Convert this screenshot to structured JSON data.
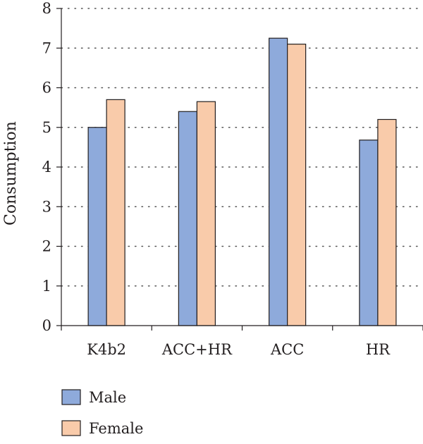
{
  "chart_data": {
    "type": "bar",
    "title": "",
    "xlabel": "",
    "ylabel": "Consumption",
    "ylim": [
      0,
      8
    ],
    "yticks": [
      0,
      1,
      2,
      3,
      4,
      5,
      6,
      7,
      8
    ],
    "grid": "horizontal-dotted",
    "legend_position": "bottom-left",
    "categories": [
      "K4b2",
      "ACC+HR",
      "ACC",
      "HR"
    ],
    "series": [
      {
        "name": "Male",
        "color": "#8eaadb",
        "values": [
          5.0,
          5.4,
          7.25,
          4.68
        ]
      },
      {
        "name": "Female",
        "color": "#f9cbaa",
        "values": [
          5.7,
          5.65,
          7.1,
          5.2
        ]
      }
    ]
  }
}
